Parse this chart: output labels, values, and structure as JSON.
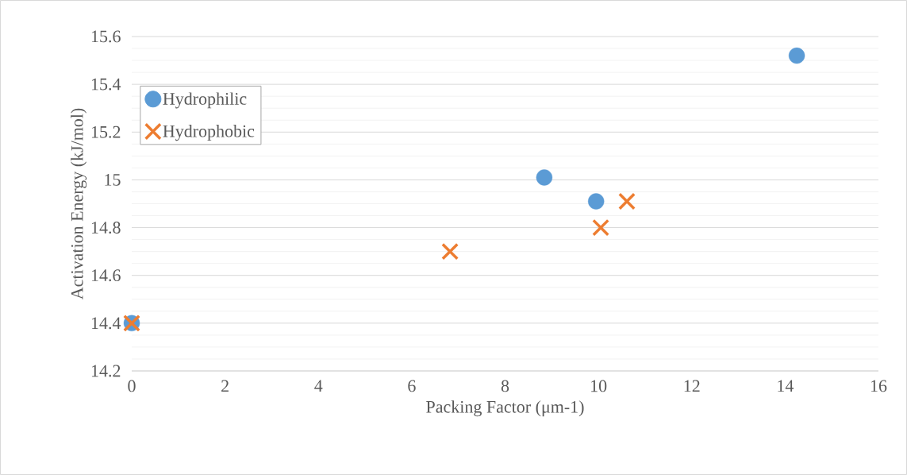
{
  "chart_data": {
    "type": "scatter",
    "xlabel": "Packing Factor (μm-1)",
    "ylabel": "Activation Energy (kJ/mol)",
    "xlim": [
      0,
      16
    ],
    "xticks": [
      0,
      2,
      4,
      6,
      8,
      10,
      12,
      14,
      16
    ],
    "ylim": [
      14.2,
      15.6
    ],
    "yticks": [
      14.2,
      14.4,
      14.6,
      14.8,
      15,
      15.2,
      15.4,
      15.6
    ],
    "grid": "y",
    "legend": "top left",
    "series": [
      {
        "name": "Hydrophilic",
        "color": "#5b9bd5",
        "marker": "circle",
        "x": [
          0,
          8.84,
          9.95,
          14.25
        ],
        "values": [
          14.4,
          15.01,
          14.91,
          15.52
        ]
      },
      {
        "name": "Hydrophobic",
        "color": "#ed7d31",
        "marker": "cross",
        "x": [
          0,
          6.82,
          10.05,
          10.61
        ],
        "values": [
          14.4,
          14.7,
          14.8,
          14.91
        ]
      }
    ]
  }
}
